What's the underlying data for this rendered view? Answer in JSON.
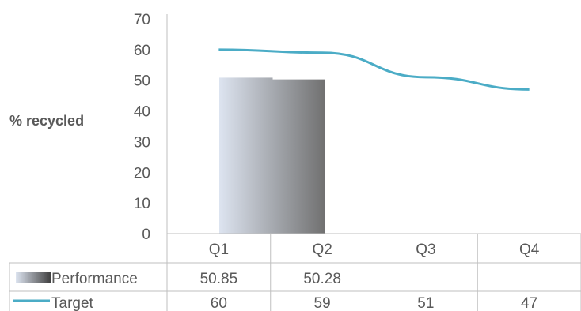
{
  "chart_data": {
    "type": "bar",
    "ylabel": "% recycled",
    "ylim": [
      0,
      70
    ],
    "y_ticks": [
      0,
      10,
      20,
      30,
      40,
      50,
      60,
      70
    ],
    "categories": [
      "Q1",
      "Q2",
      "Q3",
      "Q4"
    ],
    "series": [
      {
        "name": "Performance",
        "type": "bar",
        "values": [
          50.85,
          50.28,
          null,
          null
        ],
        "labels": [
          "50.85",
          "50.28",
          "",
          ""
        ],
        "colors": [
          "#dde4f0",
          "#707070"
        ]
      },
      {
        "name": "Target",
        "type": "line",
        "values": [
          60,
          59,
          51,
          47
        ],
        "labels": [
          "60",
          "59",
          "51",
          "47"
        ],
        "color": "#4bacc6"
      }
    ],
    "data_table": true,
    "grid": false
  }
}
